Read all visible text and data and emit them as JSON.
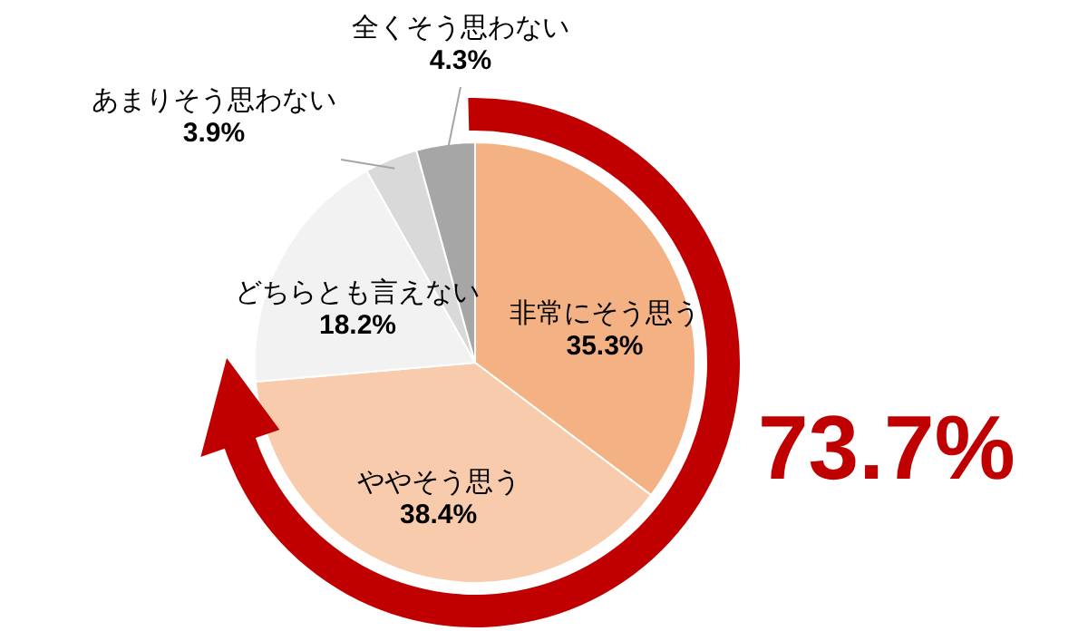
{
  "chart_data": {
    "type": "pie",
    "categories": [
      "非常にそう思う",
      "ややそう思う",
      "どちらとも言えない",
      "あまりそう思わない",
      "全くそう思わない"
    ],
    "values": [
      35.3,
      38.4,
      18.2,
      3.9,
      4.3
    ],
    "colors": [
      "#f4b183",
      "#f8cbad",
      "#f2f2f2",
      "#d9d9d9",
      "#a6a6a6"
    ],
    "value_labels": [
      "35.3%",
      "38.4%",
      "18.2%",
      "3.9%",
      "4.3%"
    ],
    "legend": false,
    "annotations": [
      "73.7%"
    ]
  }
}
